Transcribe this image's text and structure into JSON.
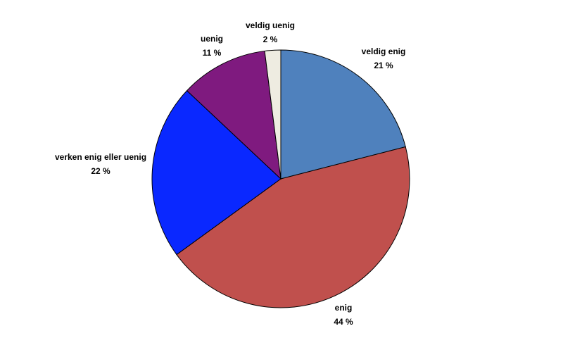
{
  "chart_data": {
    "type": "pie",
    "title": "",
    "slices": [
      {
        "label": "veldig enig",
        "value": 21,
        "value_label": "21 %",
        "color": "#4F81BD"
      },
      {
        "label": "enig",
        "value": 44,
        "value_label": "44 %",
        "color": "#C0504D"
      },
      {
        "label": "verken enig eller uenig",
        "value": 22,
        "value_label": "22 %",
        "color": "#0A28FF"
      },
      {
        "label": "uenig",
        "value": 11,
        "value_label": "11 %",
        "color": "#7F1A7F"
      },
      {
        "label": "veldig uenig",
        "value": 2,
        "value_label": "2 %",
        "color": "#EEECE1"
      }
    ],
    "start_angle": "12 o'clock",
    "direction": "clockwise",
    "legend": "none",
    "labels": "outside slices (category name and percent)"
  }
}
